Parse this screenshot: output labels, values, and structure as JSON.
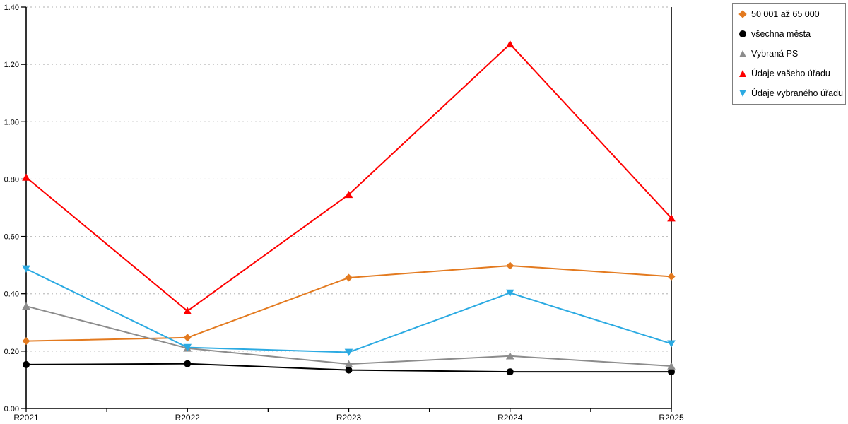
{
  "chart_data": {
    "type": "line",
    "title": "",
    "xlabel": "",
    "ylabel": "",
    "categories": [
      "R2021",
      "R2022",
      "R2023",
      "R2024",
      "R2025"
    ],
    "series": [
      {
        "name": "50 001 až 65 000",
        "color": "#E37A1F",
        "marker": "diamond",
        "values": [
          0.235,
          0.247,
          0.456,
          0.498,
          0.46
        ]
      },
      {
        "name": "všechna města",
        "color": "#000000",
        "marker": "circle",
        "values": [
          0.153,
          0.156,
          0.134,
          0.128,
          0.128
        ]
      },
      {
        "name": "Vybraná PS",
        "color": "#8C8C8C",
        "marker": "triangle-up",
        "values": [
          0.357,
          0.21,
          0.155,
          0.183,
          0.148
        ]
      },
      {
        "name": "Údaje vašeho úřadu",
        "color": "#FE0000",
        "marker": "triangle-up",
        "values": [
          0.806,
          0.34,
          0.746,
          1.271,
          0.664
        ]
      },
      {
        "name": "Údaje vybraného úřadu",
        "color": "#2BAAE2",
        "marker": "triangle-down",
        "values": [
          0.487,
          0.213,
          0.196,
          0.403,
          0.226
        ]
      }
    ],
    "ylim": [
      0.0,
      1.4
    ],
    "ytick_labels": [
      "0.00",
      "0.20",
      "0.40",
      "0.60",
      "0.80",
      "1.00",
      "1.20",
      "1.40"
    ],
    "grid": "horizontal-dotted",
    "minor_x_ticks_between_categories": true,
    "legend_position": "top-right",
    "colors": {
      "grid": "#C0C0C0",
      "axis": "#000000",
      "background": "#FFFFFF"
    }
  }
}
